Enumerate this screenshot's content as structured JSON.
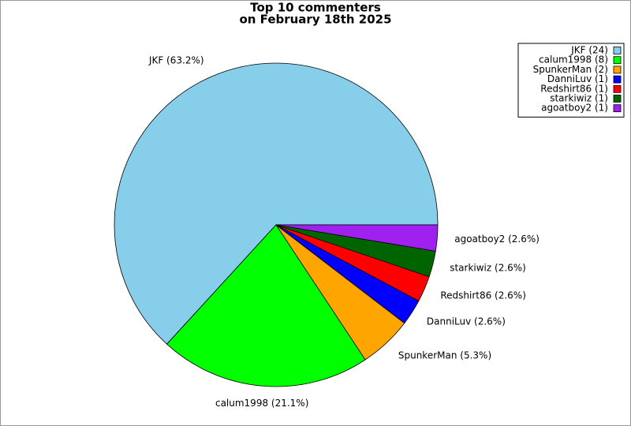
{
  "chart_data": {
    "type": "pie",
    "title": [
      "Top 10 commenters",
      "on February 18th 2025"
    ],
    "categories": [
      "JKF (24)",
      "calum1998 (8)",
      "SpunkerMan (2)",
      "DanniLuv (1)",
      "Redshirt86 (1)",
      "starkiwiz (1)",
      "agoatboy2 (1)"
    ],
    "values": [
      63.2,
      21.1,
      5.3,
      2.6,
      2.6,
      2.6,
      2.6
    ],
    "value_labels": [
      "JKF (63.2%)",
      "calum1998 (21.1%)",
      "SpunkerMan (5.3%)",
      "DanniLuv (2.6%)",
      "Redshirt86 (2.6%)",
      "starkiwiz (2.6%)",
      "agoatboy2 (2.6%)"
    ],
    "colors": [
      "#87ceeb",
      "#00ff00",
      "#ffa500",
      "#0000ff",
      "#ff0000",
      "#006400",
      "#a020f0"
    ],
    "legend": "upper right"
  }
}
